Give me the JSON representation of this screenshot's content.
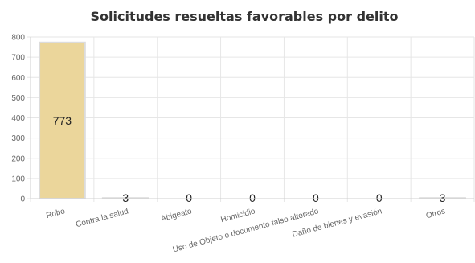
{
  "chart_data": {
    "type": "bar",
    "title": "Solicitudes resueltas favorables por delito",
    "categories": [
      "Robo",
      "Contra la salud",
      "Abigeato",
      "Homicidio",
      "Uso de Objeto o documento falso alterado",
      "Daño de bienes y evasión",
      "Otros"
    ],
    "values": [
      773,
      3,
      0,
      0,
      0,
      0,
      3
    ],
    "data_labels": [
      "773",
      "3",
      "0",
      "0",
      "0",
      "0",
      "3"
    ],
    "ylim": [
      0,
      800
    ],
    "yticks": [
      0,
      100,
      200,
      300,
      400,
      500,
      600,
      700,
      800
    ],
    "grid": true,
    "legend": "none",
    "bar_color": "#ebd69b",
    "bar_border_color": "#dcdcdc"
  }
}
